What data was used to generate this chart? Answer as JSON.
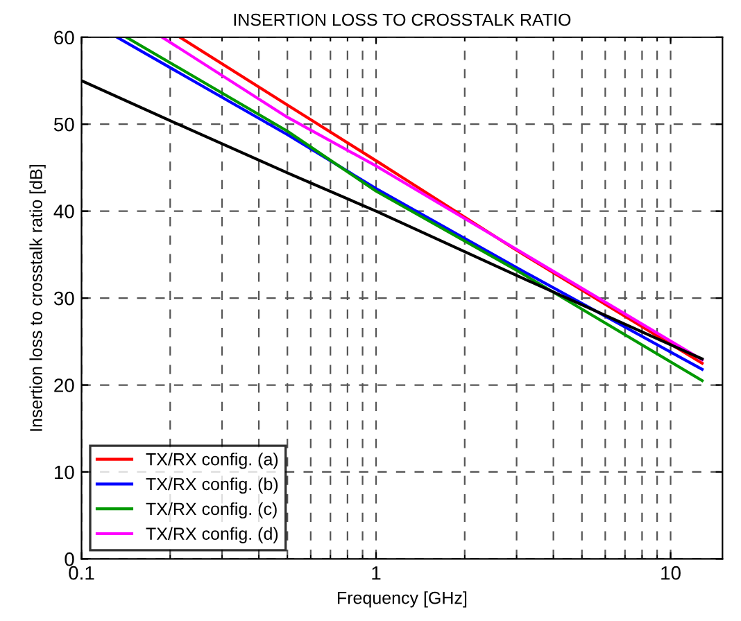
{
  "chart_data": {
    "type": "line",
    "title": "INSERTION LOSS TO CROSSTALK RATIO",
    "xlabel": "Frequency [GHz]",
    "ylabel": "Insertion loss to crosstalk ratio [dB]",
    "log": "x",
    "xlim": [
      0.1,
      15
    ],
    "xticks": [
      0.1,
      1,
      10
    ],
    "ylim": [
      0,
      60
    ],
    "yticks": [
      0,
      10,
      20,
      30,
      40,
      50,
      60
    ],
    "grid": true,
    "legend": "bottom left",
    "line_style": "solid",
    "series": [
      {
        "name": "TX/RX config. (a)",
        "color": "#ff0000",
        "x": [
          0.216,
          0.5,
          1,
          3,
          12.8
        ],
        "values": [
          60,
          52.2,
          45.8,
          35.5,
          22.5
        ]
      },
      {
        "name": "TX/RX config. (b)",
        "color": "#0000ff",
        "x": [
          0.132,
          0.5,
          1,
          3,
          12.8
        ],
        "values": [
          60,
          48.8,
          42.6,
          33.5,
          21.8
        ]
      },
      {
        "name": "TX/RX config. (c)",
        "color": "#009900",
        "x": [
          0.142,
          0.5,
          1,
          3,
          12.8
        ],
        "values": [
          60,
          49.2,
          42.3,
          33.2,
          20.5
        ]
      },
      {
        "name": "TX/RX config. (d)",
        "color": "#ff00ff",
        "x": [
          0.188,
          0.5,
          1,
          3,
          12.8
        ],
        "values": [
          60,
          50.8,
          45.2,
          35.6,
          22.9
        ]
      },
      {
        "color": "#000000",
        "x": [
          0.1,
          0.2,
          0.5,
          1,
          3,
          12.8
        ],
        "values": [
          55,
          50.4,
          44.4,
          40,
          32.6,
          23.0
        ]
      }
    ]
  }
}
